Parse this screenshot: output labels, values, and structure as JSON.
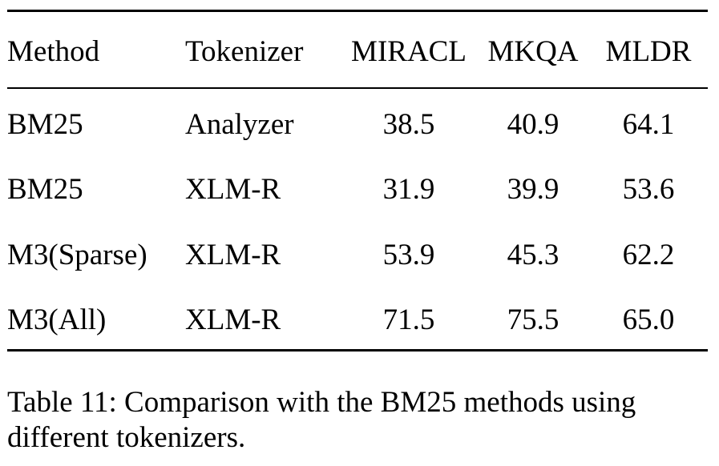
{
  "table": {
    "columns": [
      "Method",
      "Tokenizer",
      "MIRACL",
      "MKQA",
      "MLDR"
    ],
    "rows": [
      [
        "BM25",
        "Analyzer",
        "38.5",
        "40.9",
        "64.1"
      ],
      [
        "BM25",
        "XLM-R",
        "31.9",
        "39.9",
        "53.6"
      ],
      [
        "M3(Sparse)",
        "XLM-R",
        "53.9",
        "45.3",
        "62.2"
      ],
      [
        "M3(All)",
        "XLM-R",
        "71.5",
        "75.5",
        "65.0"
      ]
    ]
  },
  "caption": "Table 11: Comparison with the BM25 methods using different tokenizers."
}
